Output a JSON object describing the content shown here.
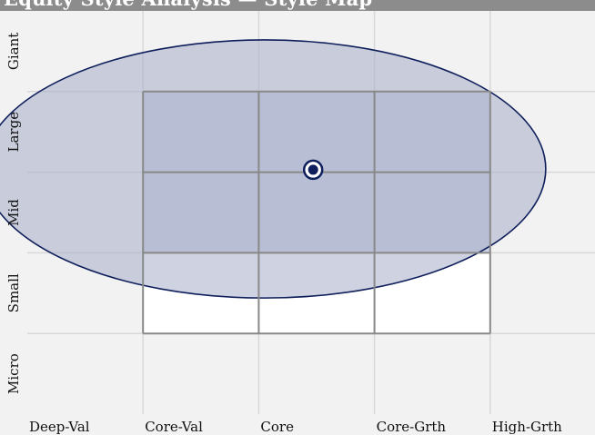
{
  "header": {
    "title": "Equity Style Analysis — Style Map",
    "bar_color": "#8c8c8c"
  },
  "chart_data": {
    "type": "scatter",
    "title": "Equity Style Analysis — Style Map",
    "x_categories": [
      "Deep-Val",
      "Core-Val",
      "Core",
      "Core-Grth",
      "High-Grth"
    ],
    "y_categories": [
      "Micro",
      "Small",
      "Mid",
      "Large",
      "Giant"
    ],
    "xlim": [
      0,
      5
    ],
    "ylim": [
      0,
      5
    ],
    "grid": true,
    "style_box": {
      "x_range": [
        1,
        4
      ],
      "y_range": [
        1,
        4
      ],
      "rows": 3,
      "cols": 3,
      "fill_y_range": [
        2,
        4
      ],
      "cell_fill": "#cdd2e2",
      "border_color": "#888888"
    },
    "ownership_zone": {
      "center": [
        2.05,
        3.04
      ],
      "x_radius": 2.43,
      "y_radius": 1.6,
      "fill": "#a7afc8",
      "stroke": "#0f1f5c"
    },
    "centroid": {
      "x": 2.47,
      "y": 3.03,
      "color": "#0f1f5c"
    }
  }
}
